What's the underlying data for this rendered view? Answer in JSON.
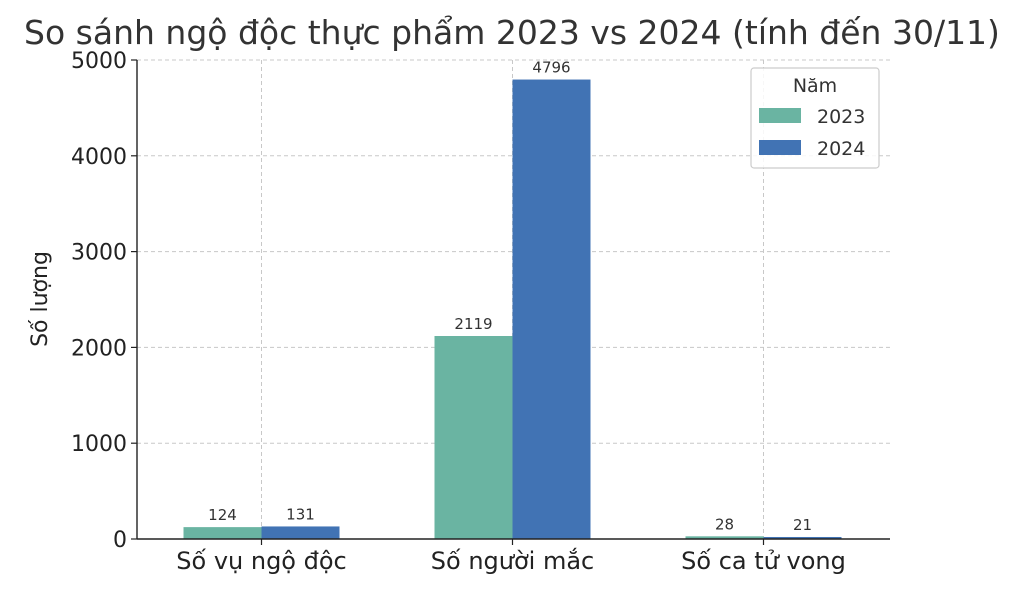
{
  "chart_data": {
    "type": "bar",
    "title": "So sánh ngộ độc thực phẩm 2023 vs 2024 (tính đến 30/11)",
    "xlabel": "",
    "ylabel": "Số lượng",
    "categories": [
      "Số vụ ngộ độc",
      "Số người mắc",
      "Số ca tử vong"
    ],
    "series": [
      {
        "name": "2023",
        "values": [
          124,
          2119,
          28
        ],
        "color": "#6ab4a2"
      },
      {
        "name": "2024",
        "values": [
          131,
          4796,
          21
        ],
        "color": "#4173b4"
      }
    ],
    "ylim": [
      0,
      5000
    ],
    "yticks": [
      "0",
      "1000",
      "2000",
      "3000",
      "4000",
      "5000"
    ],
    "grid": true,
    "legend": {
      "title": "Năm",
      "placement": "top-right"
    }
  }
}
